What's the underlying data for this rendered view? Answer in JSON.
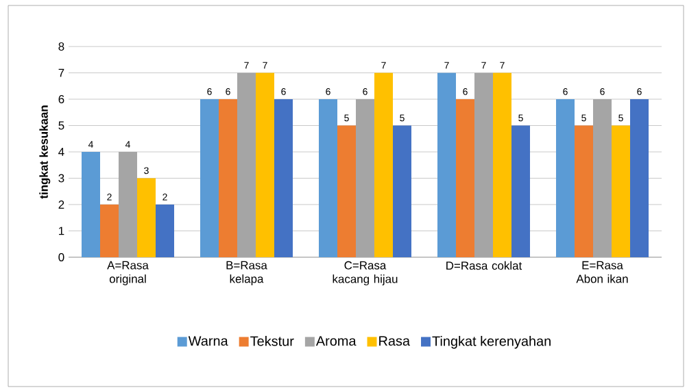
{
  "chart_data": {
    "type": "bar",
    "ylabel": "tingkat kesukaan",
    "categories": [
      "A=Rasa original",
      "B=Rasa kelapa",
      "C=Rasa kacang hijau",
      "D=Rasa coklat",
      "E=Rasa Abon ikan"
    ],
    "series": [
      {
        "name": "Warna",
        "color": "#5b9bd5",
        "values": [
          4,
          6,
          6,
          7,
          6
        ]
      },
      {
        "name": "Tekstur",
        "color": "#ed7d31",
        "values": [
          2,
          6,
          5,
          6,
          5
        ]
      },
      {
        "name": "Aroma",
        "color": "#a5a5a5",
        "values": [
          4,
          7,
          6,
          7,
          6
        ]
      },
      {
        "name": "Rasa",
        "color": "#ffc000",
        "values": [
          3,
          7,
          7,
          7,
          5
        ]
      },
      {
        "name": "Tingkat kerenyahan",
        "color": "#4472c4",
        "values": [
          2,
          6,
          5,
          5,
          6
        ]
      }
    ],
    "ylim": [
      0,
      8
    ],
    "yticks": [
      0,
      1,
      2,
      3,
      4,
      5,
      6,
      7,
      8
    ],
    "grid": "y",
    "legend": "bottom",
    "data_labels": true
  }
}
